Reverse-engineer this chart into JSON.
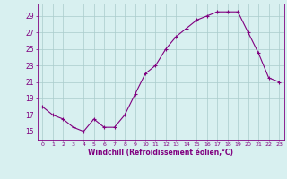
{
  "hours": [
    0,
    1,
    2,
    3,
    4,
    5,
    6,
    7,
    8,
    9,
    10,
    11,
    12,
    13,
    14,
    15,
    16,
    17,
    18,
    19,
    20,
    21,
    22,
    23
  ],
  "values": [
    18.0,
    17.0,
    16.5,
    15.5,
    15.0,
    16.5,
    15.5,
    15.5,
    17.0,
    19.5,
    22.0,
    23.0,
    25.0,
    26.5,
    27.5,
    28.5,
    29.0,
    29.5,
    29.5,
    29.5,
    27.0,
    24.5,
    21.5,
    21.0
  ],
  "line_color": "#800080",
  "marker": "+",
  "marker_size": 3,
  "line_width": 0.8,
  "bg_color": "#d8f0f0",
  "grid_color": "#aacccc",
  "xlabel": "Windchill (Refroidissement éolien,°C)",
  "xlabel_color": "#800080",
  "yticks": [
    15,
    17,
    19,
    21,
    23,
    25,
    27,
    29
  ],
  "ylim": [
    14.0,
    30.5
  ],
  "xlim": [
    -0.5,
    23.5
  ],
  "tick_color": "#800080",
  "spine_color": "#800080",
  "xtick_fontsize": 4.5,
  "ytick_fontsize": 5.5,
  "xlabel_fontsize": 5.5
}
